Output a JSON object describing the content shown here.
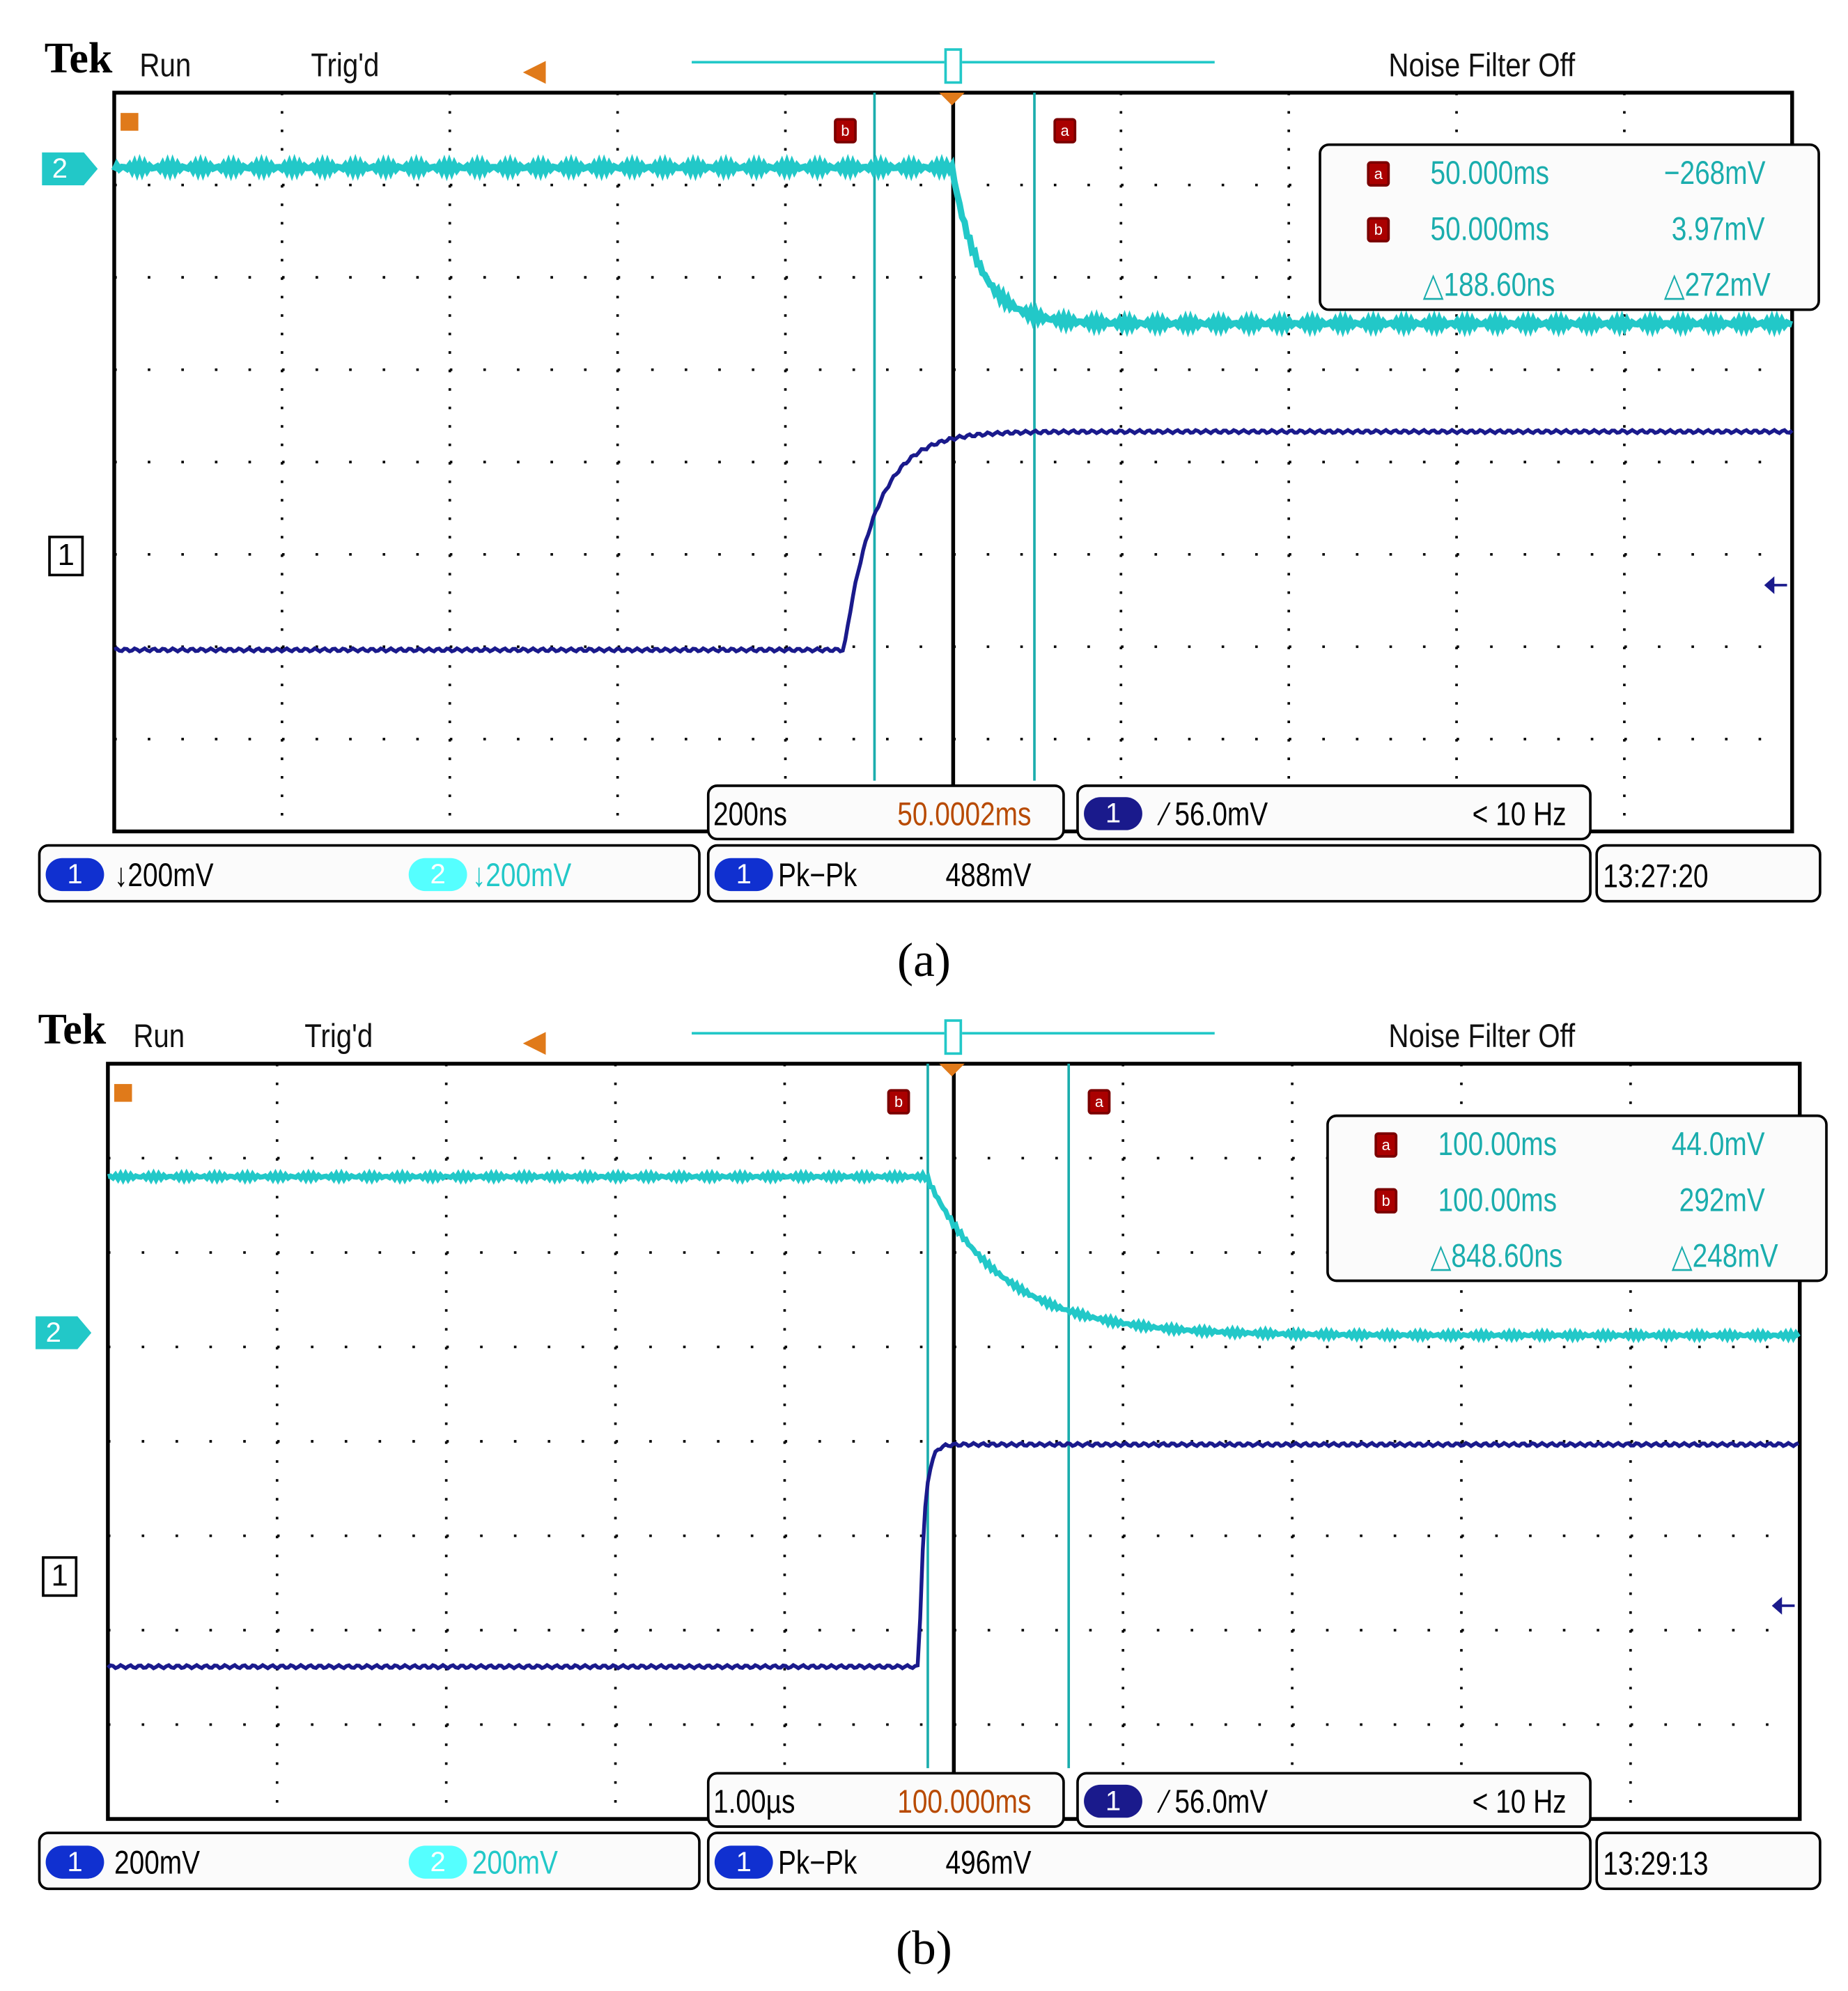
{
  "colors": {
    "ch1": "#1a1a8c",
    "ch2": "#22c8c8",
    "cursor": "#1aadad",
    "trigger": "#e07a1a",
    "offset": "#b84a00",
    "cursor_marker": "#8b0000"
  },
  "panels": [
    {
      "caption": "(a)",
      "header": {
        "brand": "Tek",
        "state": "Run",
        "trig": "Trig'd",
        "noise": "Noise Filter Off"
      },
      "ch2_marker": "2",
      "ch1_marker": "1",
      "cursor_a_label": "a",
      "cursor_b_label": "b",
      "readout": {
        "a_time": "50.000ms",
        "a_volt": "−268mV",
        "b_time": "50.000ms",
        "b_volt": "3.97mV",
        "d_time": "△188.60ns",
        "d_volt": "△272mV"
      },
      "timebase": "200ns",
      "position": "50.0002ms",
      "trigger": {
        "channel": "1",
        "level": "∕ 56.0mV",
        "freq": "< 10 Hz"
      },
      "ch1_scale": {
        "channel": "1",
        "value": "↓200mV"
      },
      "ch2_scale": {
        "channel": "2",
        "value": "↓200mV"
      },
      "measurement": {
        "channel": "1",
        "type": "Pk−Pk",
        "value": "488mV"
      },
      "clock": "13:27:20"
    },
    {
      "caption": "(b)",
      "header": {
        "brand": "Tek",
        "state": "Run",
        "trig": "Trig'd",
        "noise": "Noise Filter Off"
      },
      "ch2_marker": "2",
      "ch1_marker": "1",
      "cursor_a_label": "a",
      "cursor_b_label": "b",
      "readout": {
        "a_time": "100.00ms",
        "a_volt": "44.0mV",
        "b_time": "100.00ms",
        "b_volt": "292mV",
        "d_time": "△848.60ns",
        "d_volt": "△248mV"
      },
      "timebase": "1.00µs",
      "position": "100.000ms",
      "trigger": {
        "channel": "1",
        "level": "∕ 56.0mV",
        "freq": "< 10 Hz"
      },
      "ch1_scale": {
        "channel": "1",
        "value": "200mV"
      },
      "ch2_scale": {
        "channel": "2",
        "value": "200mV"
      },
      "measurement": {
        "channel": "1",
        "type": "Pk−Pk",
        "value": "496mV"
      },
      "clock": "13:29:13"
    }
  ]
}
